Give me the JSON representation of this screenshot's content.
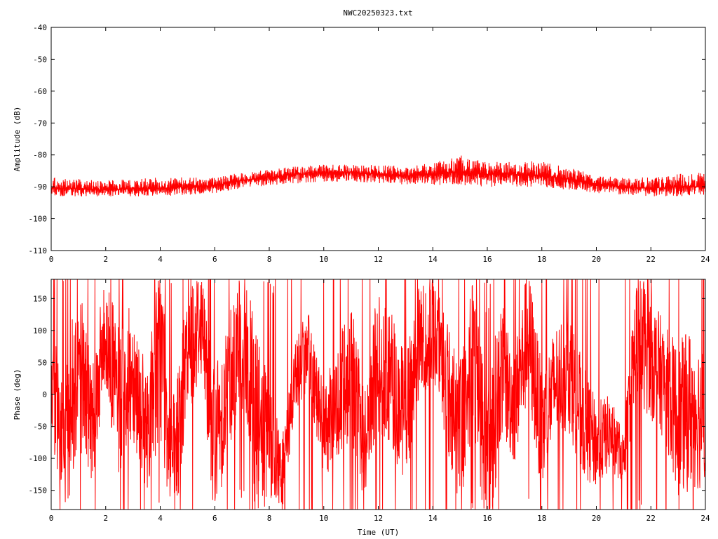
{
  "title": "NWC20250323.txt",
  "colors": {
    "trace": "#ff0000",
    "frame": "#000000",
    "background": "#ffffff"
  },
  "chart_data": [
    {
      "type": "line",
      "name": "amplitude",
      "title": "NWC20250323.txt",
      "xlabel": "",
      "ylabel": "Amplitude (dB)",
      "xlim": [
        0,
        24
      ],
      "ylim": [
        -110,
        -40
      ],
      "xticks": [
        "0",
        "2",
        "4",
        "6",
        "8",
        "10",
        "12",
        "14",
        "16",
        "18",
        "20",
        "22",
        "24"
      ],
      "yticks": [
        "-40",
        "-50",
        "-60",
        "-70",
        "-80",
        "-90",
        "-100",
        "-110"
      ],
      "grid": false,
      "series": [
        {
          "color": "#ff0000",
          "x": [
            0,
            1,
            2,
            3,
            4,
            5,
            6,
            7,
            8,
            9,
            10,
            11,
            12,
            13,
            14,
            15,
            16,
            17,
            18,
            19,
            20,
            21,
            22,
            23,
            24
          ],
          "y": [
            -90.5,
            -90.5,
            -91,
            -90.5,
            -90.5,
            -90,
            -89.5,
            -88,
            -87,
            -86,
            -85.5,
            -85.5,
            -86,
            -86.5,
            -86,
            -85.5,
            -86,
            -86,
            -86.5,
            -87.5,
            -89,
            -90,
            -90.5,
            -90,
            -90
          ],
          "y_min": [
            -93,
            -93,
            -93,
            -93,
            -93,
            -92.5,
            -92,
            -90.5,
            -89.5,
            -89,
            -88.5,
            -88.5,
            -89,
            -89.5,
            -89.5,
            -89.5,
            -90,
            -90,
            -90,
            -91,
            -92,
            -92.5,
            -93,
            -93,
            -92.5
          ],
          "y_max": [
            -87,
            -87.5,
            -88,
            -87.5,
            -87,
            -87,
            -87,
            -85.5,
            -84.5,
            -83.5,
            -83,
            -83,
            -83,
            -83.5,
            -82.5,
            -80,
            -82,
            -82,
            -82,
            -84,
            -86,
            -87,
            -87,
            -86,
            -85.5
          ]
        }
      ]
    },
    {
      "type": "line",
      "name": "phase",
      "xlabel": "Time (UT)",
      "ylabel": "Phase (deg)",
      "xlim": [
        0,
        24
      ],
      "ylim": [
        -180,
        180
      ],
      "xticks": [
        "0",
        "2",
        "4",
        "6",
        "8",
        "10",
        "12",
        "14",
        "16",
        "18",
        "20",
        "22",
        "24"
      ],
      "yticks": [
        "150",
        "100",
        "50",
        "0",
        "-50",
        "-100",
        "-150"
      ],
      "grid": false,
      "series": [
        {
          "color": "#ff0000",
          "x": [
            0,
            0.5,
            1,
            1.5,
            2,
            2.5,
            3,
            3.5,
            4,
            4.5,
            5,
            5.5,
            6,
            6.5,
            7,
            7.5,
            8,
            8.5,
            9,
            9.5,
            10,
            10.5,
            11,
            11.5,
            12,
            12.5,
            13,
            13.5,
            14,
            14.5,
            15,
            15.5,
            16,
            16.5,
            17,
            17.5,
            18,
            18.5,
            19,
            19.5,
            20,
            20.5,
            21,
            21.5,
            22,
            22.5,
            23,
            23.5,
            24
          ],
          "y": [
            20,
            -80,
            60,
            -40,
            100,
            -20,
            40,
            -60,
            80,
            -120,
            60,
            120,
            -80,
            20,
            100,
            -40,
            -100,
            -120,
            40,
            60,
            -60,
            -20,
            40,
            -80,
            60,
            20,
            -40,
            80,
            100,
            20,
            -60,
            80,
            -120,
            40,
            -20,
            100,
            -60,
            20,
            40,
            -40,
            -80,
            -60,
            -100,
            100,
            60,
            20,
            -40,
            -20,
            -40
          ],
          "y_spread": [
            80,
            120,
            140,
            100,
            90,
            120,
            110,
            90,
            150,
            120,
            100,
            90,
            120,
            110,
            130,
            140,
            120,
            60,
            60,
            70,
            70,
            100,
            110,
            90,
            120,
            110,
            100,
            90,
            80,
            110,
            120,
            130,
            140,
            110,
            90,
            110,
            100,
            90,
            100,
            90,
            70,
            60,
            40,
            110,
            100,
            90,
            120,
            130,
            110
          ]
        }
      ]
    }
  ]
}
